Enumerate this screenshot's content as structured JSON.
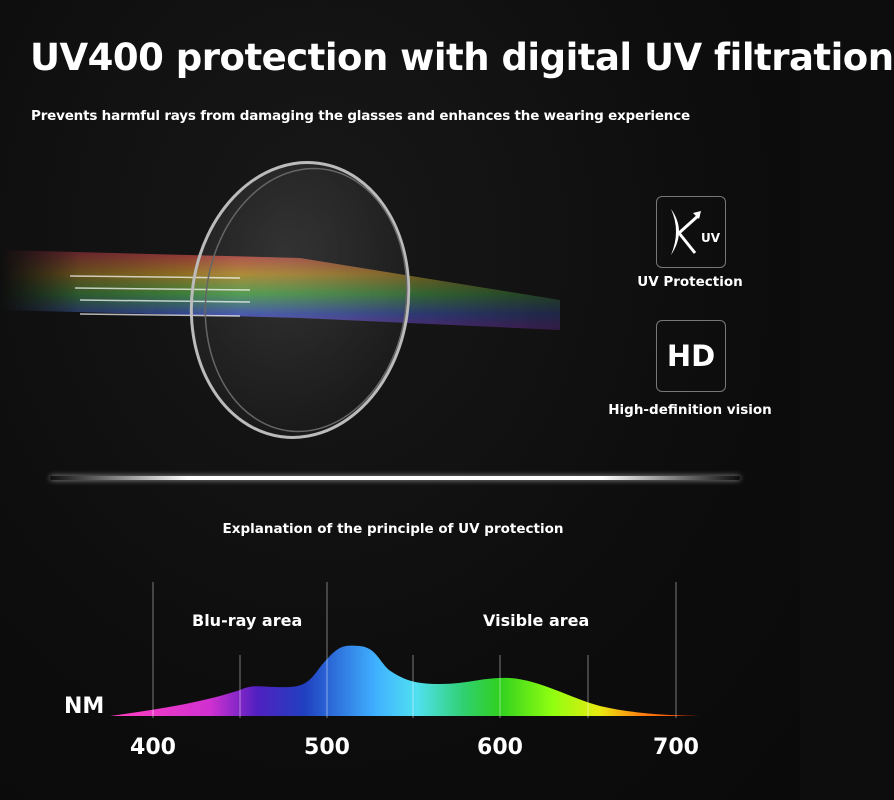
{
  "header": {
    "title": "UV400 protection with digital UV filtration",
    "subtitle": "Prevents harmful rays from damaging the glasses and enhances the wearing experience"
  },
  "features": [
    {
      "icon": "uv-protection-icon",
      "icon_text": "UV",
      "label": "UV Protection"
    },
    {
      "icon": "hd-icon",
      "icon_text": "HD",
      "label": "High-definition vision"
    }
  ],
  "diagram": {
    "caption": "Explanation of the principle of UV protection",
    "regions": [
      "Blu-ray area",
      "Visible area"
    ],
    "unit": "NM",
    "ticks": [
      "400",
      "500",
      "600",
      "700"
    ]
  }
}
